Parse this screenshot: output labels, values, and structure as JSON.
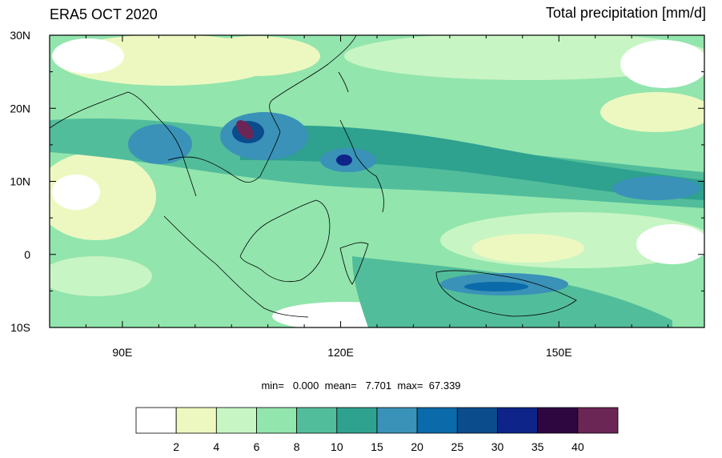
{
  "title": {
    "left": "ERA5 OCT 2020",
    "right": "Total precipitation [mm/d]"
  },
  "map": {
    "lon_range": [
      80,
      170
    ],
    "lat_range": [
      -10,
      30
    ],
    "x_ticks": [
      {
        "value": 90,
        "label": "90E"
      },
      {
        "value": 120,
        "label": "120E"
      },
      {
        "value": 150,
        "label": "150E"
      }
    ],
    "y_ticks": [
      {
        "value": 30,
        "label": "30N"
      },
      {
        "value": 20,
        "label": "20N"
      },
      {
        "value": 10,
        "label": "10N"
      },
      {
        "value": 0,
        "label": "0"
      },
      {
        "value": -10,
        "label": "10S"
      }
    ]
  },
  "stats": {
    "min_label": "min=",
    "min": "0.000",
    "mean_label": "mean=",
    "mean": "7.701",
    "max_label": "max=",
    "max": "67.339"
  },
  "colorbar": {
    "colors": [
      "#ffffff",
      "#edf8c0",
      "#c8f5c4",
      "#92e5ad",
      "#52bd9b",
      "#2ea18f",
      "#3a92b8",
      "#0b6aa9",
      "#0a4c8c",
      "#0e2488",
      "#2e0640",
      "#6b2656"
    ],
    "labels": [
      "2",
      "4",
      "6",
      "8",
      "10",
      "15",
      "20",
      "25",
      "30",
      "35",
      "40"
    ]
  }
}
